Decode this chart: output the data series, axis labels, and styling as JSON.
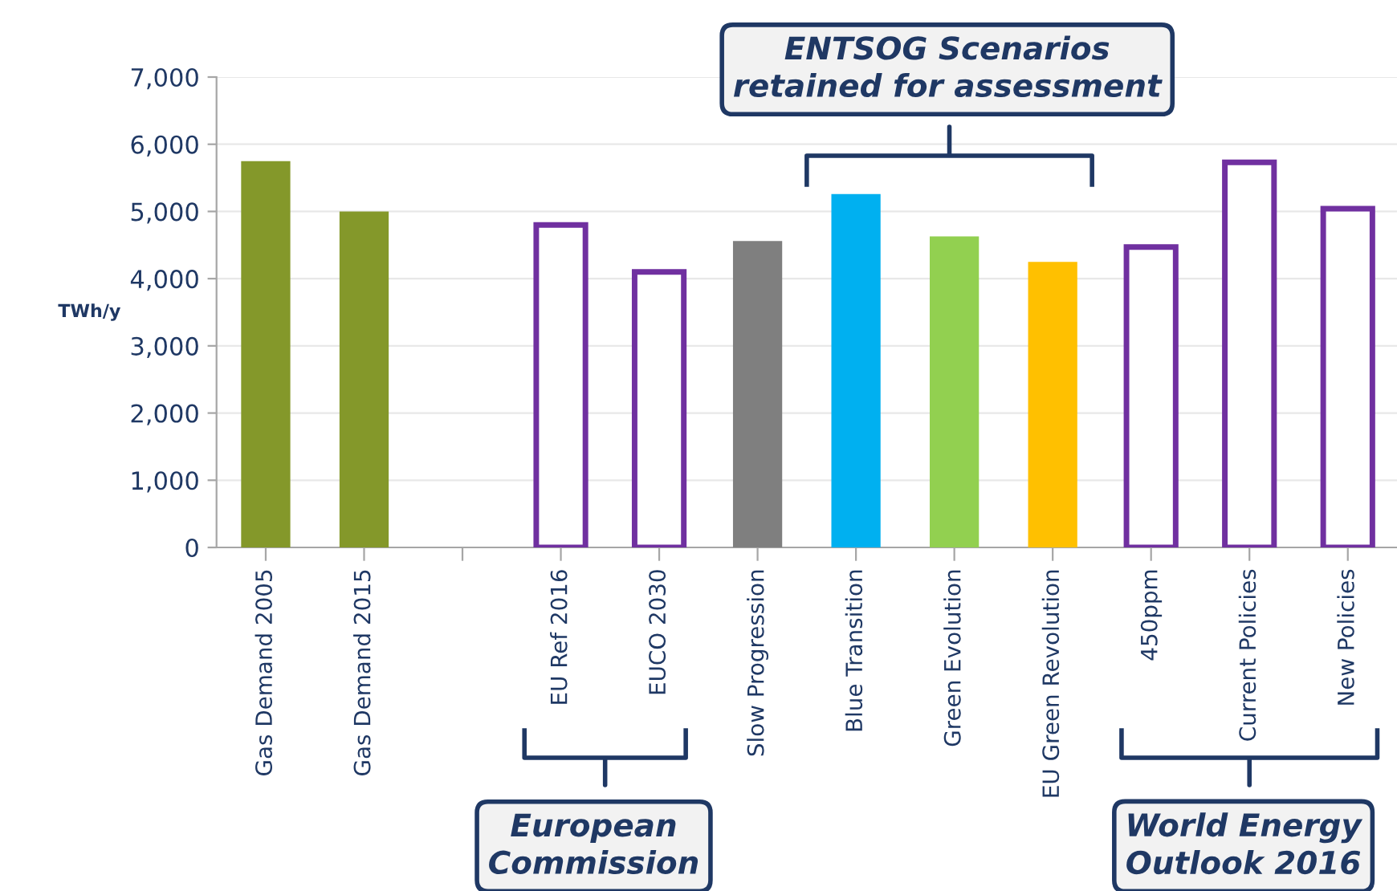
{
  "chart_data": {
    "type": "bar",
    "ylabel": "TWh/y",
    "categories": [
      "Gas Demand 2005",
      "Gas Demand 2015",
      null,
      "EU Ref 2016",
      "EUCO 2030",
      "Slow Progression",
      "Blue Transition",
      "Green Evolution",
      "EU Green Revolution",
      "450ppm",
      "Current Policies",
      "New Policies"
    ],
    "series": [
      {
        "colors": [
          "#84982a",
          "#84982a",
          null,
          null,
          null,
          "#7f7f7f",
          "#00b0f0",
          "#92d050",
          "#ffc000",
          null,
          null,
          null
        ],
        "values": [
          5750,
          5000,
          null,
          null,
          null,
          4560,
          5260,
          4630,
          4250,
          null,
          null,
          null
        ]
      },
      {
        "color": "#7030a0",
        "line_style": "solid",
        "values": [
          null,
          null,
          null,
          4800,
          4100,
          null,
          null,
          null,
          null,
          4470,
          5730,
          5040
        ]
      }
    ],
    "ylim": [
      0,
      7000
    ],
    "yticks": [
      {
        "value": 0,
        "label": "0"
      },
      {
        "value": 1000,
        "label": "1,000"
      },
      {
        "value": 2000,
        "label": "2,000"
      },
      {
        "value": 3000,
        "label": "3,000"
      },
      {
        "value": 4000,
        "label": "4,000"
      },
      {
        "value": 5000,
        "label": "5,000"
      },
      {
        "value": 6000,
        "label": "6,000"
      },
      {
        "value": 7000,
        "label": "7,000"
      }
    ],
    "grid": "y",
    "annotations": [
      "ENTSOG Scenarios\nretained for assessment",
      "European\nCommission",
      "World Energy\nOutlook 2016"
    ]
  }
}
